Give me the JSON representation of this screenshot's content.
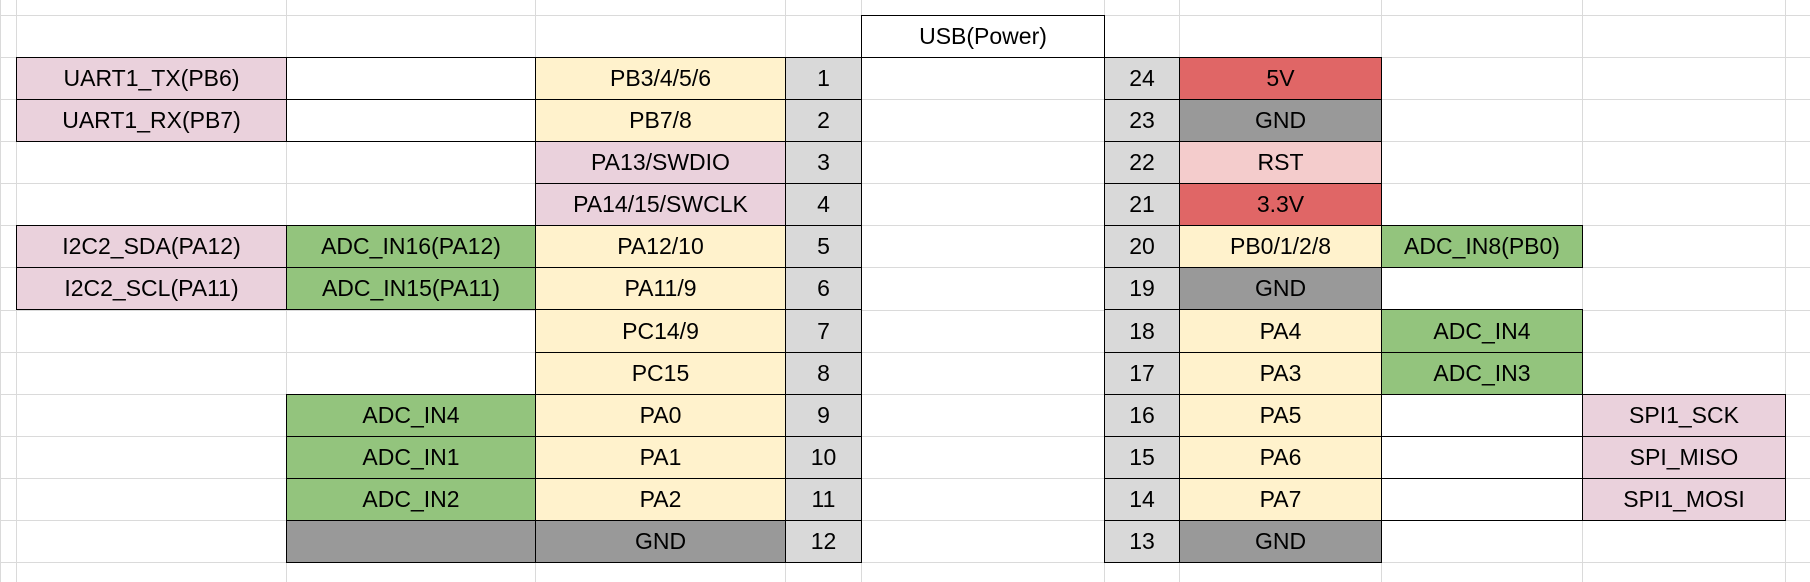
{
  "usb_header": "USB(Power)",
  "left": [
    {
      "func": "UART1_TX(PB6)",
      "func_color": "pink",
      "alt": "",
      "alt_color": "white",
      "port": "PB3/4/5/6",
      "port_color": "cream",
      "pin": "1"
    },
    {
      "func": "UART1_RX(PB7)",
      "func_color": "pink",
      "alt": "",
      "alt_color": "white",
      "port": "PB7/8",
      "port_color": "cream",
      "pin": "2"
    },
    {
      "func": null,
      "alt": null,
      "port": "PA13/SWDIO",
      "port_color": "pink",
      "pin": "3"
    },
    {
      "func": null,
      "alt": null,
      "port": "PA14/15/SWCLK",
      "port_color": "pink",
      "pin": "4"
    },
    {
      "func": "I2C2_SDA(PA12)",
      "func_color": "pink",
      "alt": "ADC_IN16(PA12)",
      "alt_color": "green",
      "port": "PA12/10",
      "port_color": "cream",
      "pin": "5"
    },
    {
      "func": "I2C2_SCL(PA11)",
      "func_color": "pink",
      "alt": "ADC_IN15(PA11)",
      "alt_color": "green",
      "port": "PA11/9",
      "port_color": "cream",
      "pin": "6"
    },
    {
      "func": null,
      "alt": null,
      "port": "PC14/9",
      "port_color": "cream",
      "pin": "7"
    },
    {
      "func": null,
      "alt": null,
      "port": "PC15",
      "port_color": "cream",
      "pin": "8"
    },
    {
      "func": null,
      "alt": "ADC_IN4",
      "alt_color": "green",
      "port": "PA0",
      "port_color": "cream",
      "pin": "9"
    },
    {
      "func": null,
      "alt": "ADC_IN1",
      "alt_color": "green",
      "port": "PA1",
      "port_color": "cream",
      "pin": "10"
    },
    {
      "func": null,
      "alt": "ADC_IN2",
      "alt_color": "green",
      "port": "PA2",
      "port_color": "cream",
      "pin": "11"
    },
    {
      "func": null,
      "alt": "",
      "alt_color": "dgray",
      "port": "GND",
      "port_color": "dgray",
      "pin": "12"
    }
  ],
  "right": [
    {
      "pin": "24",
      "port": "5V",
      "port_color": "red",
      "alt": null,
      "func": null
    },
    {
      "pin": "23",
      "port": "GND",
      "port_color": "dgray",
      "alt": null,
      "func": null
    },
    {
      "pin": "22",
      "port": "RST",
      "port_color": "lred",
      "alt": null,
      "func": null
    },
    {
      "pin": "21",
      "port": "3.3V",
      "port_color": "red",
      "alt": null,
      "func": null
    },
    {
      "pin": "20",
      "port": "PB0/1/2/8",
      "port_color": "cream",
      "alt": "ADC_IN8(PB0)",
      "alt_color": "green",
      "func": null
    },
    {
      "pin": "19",
      "port": "GND",
      "port_color": "dgray",
      "alt": null,
      "func": null
    },
    {
      "pin": "18",
      "port": "PA4",
      "port_color": "cream",
      "alt": "ADC_IN4",
      "alt_color": "green",
      "func": null
    },
    {
      "pin": "17",
      "port": "PA3",
      "port_color": "cream",
      "alt": "ADC_IN3",
      "alt_color": "green",
      "func": null
    },
    {
      "pin": "16",
      "port": "PA5",
      "port_color": "cream",
      "alt": "",
      "alt_color": "white",
      "func": "SPI1_SCK",
      "func_color": "pink"
    },
    {
      "pin": "15",
      "port": "PA6",
      "port_color": "cream",
      "alt": "",
      "alt_color": "white",
      "func": "SPI_MISO",
      "func_color": "pink"
    },
    {
      "pin": "14",
      "port": "PA7",
      "port_color": "cream",
      "alt": "",
      "alt_color": "white",
      "func": "SPI1_MOSI",
      "func_color": "pink"
    },
    {
      "pin": "13",
      "port": "GND",
      "port_color": "dgray",
      "alt": null,
      "func": null
    }
  ],
  "colors": {
    "pink": "#ead1dc",
    "green": "#93c47d",
    "cream": "#fff2cc",
    "pin_gray": "#d9d9d9",
    "dark_gray": "#999999",
    "red": "#e06666",
    "light_red": "#f4cccc"
  }
}
